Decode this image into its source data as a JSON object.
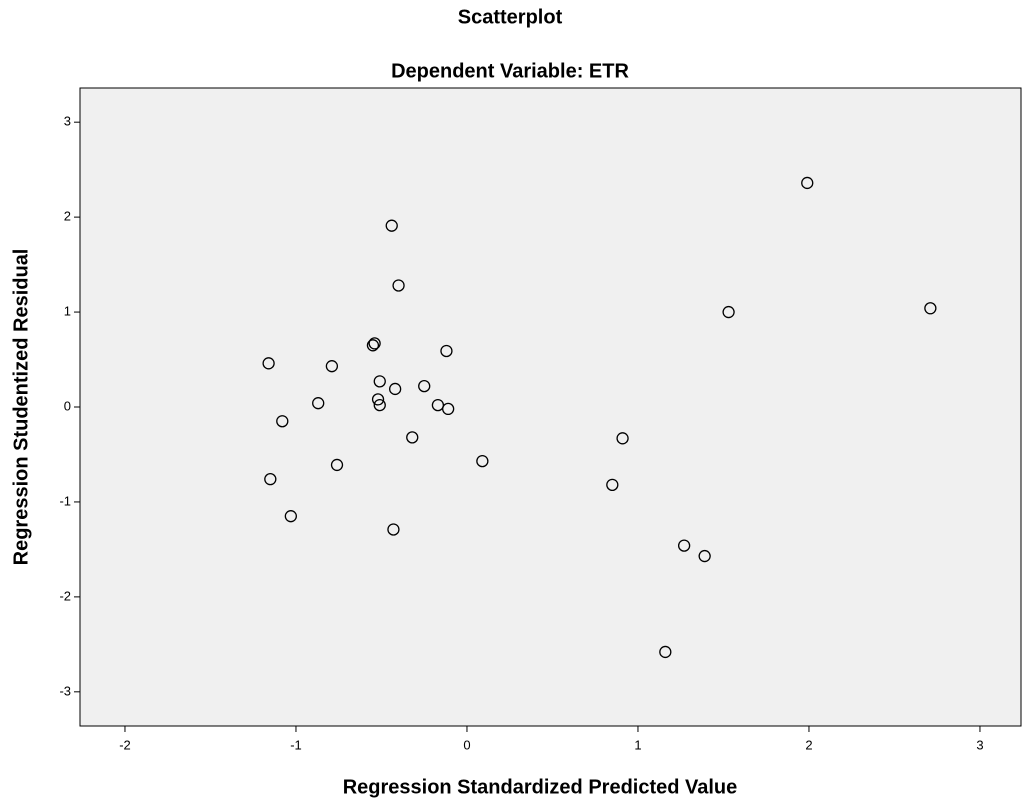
{
  "chart_data": {
    "type": "scatter",
    "title": "Scatterplot",
    "subtitle": "Dependent Variable: ETR",
    "x_label": "Regression Standardized Predicted Value",
    "y_label": "Regression Studentized Residual",
    "x": [
      1.99,
      -0.44,
      -0.4,
      1.53,
      2.71,
      -0.54,
      -0.55,
      -0.12,
      -1.16,
      -0.79,
      -0.51,
      -0.25,
      -0.42,
      -0.52,
      -0.51,
      -0.87,
      -0.17,
      -0.11,
      -1.08,
      -0.32,
      0.91,
      -0.76,
      0.09,
      -1.15,
      0.85,
      -1.03,
      -0.43,
      1.27,
      1.39,
      1.16
    ],
    "values": [
      2.36,
      1.91,
      1.28,
      1.0,
      1.04,
      0.67,
      0.65,
      0.59,
      0.46,
      0.43,
      0.27,
      0.22,
      0.19,
      0.08,
      0.02,
      0.04,
      0.02,
      -0.02,
      -0.15,
      -0.32,
      -0.33,
      -0.61,
      -0.57,
      -0.76,
      -0.82,
      -1.15,
      -1.29,
      -1.46,
      -1.57,
      -2.58
    ],
    "color": "#000000",
    "background": "#f0f0f0",
    "xlim": [
      -2.263,
      3.24
    ],
    "ylim": [
      -3.36,
      3.36
    ],
    "xticks": [
      -2,
      -1,
      0,
      1,
      2,
      3
    ],
    "yticks": [
      -3,
      -2,
      -1,
      0,
      1,
      2,
      3
    ]
  }
}
